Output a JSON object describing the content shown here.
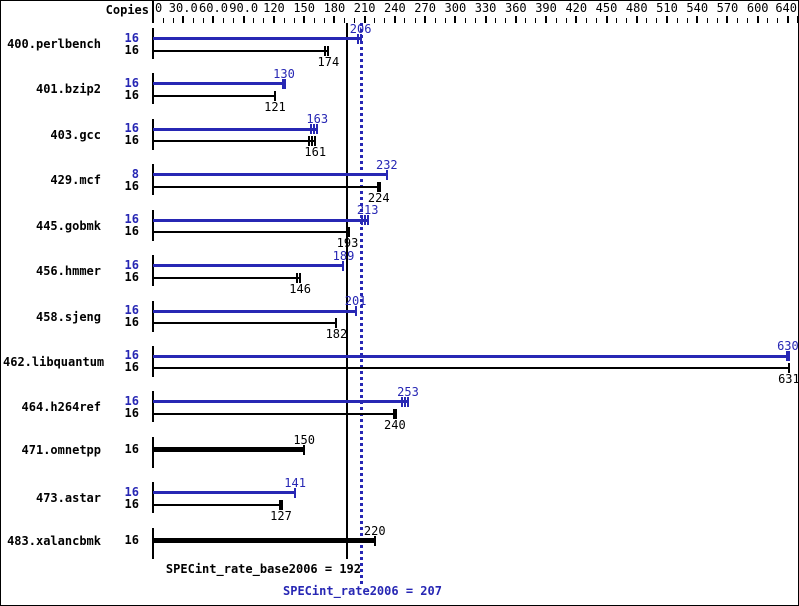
{
  "header": {
    "copies_label": "Copies"
  },
  "colors": {
    "peak_blue": "#2727b4",
    "base_black": "#000000",
    "background": "#ffffff"
  },
  "axis": {
    "max": 640,
    "minor_step": 10,
    "major_step": 30,
    "labels": [
      {
        "v": 0,
        "t": "0"
      },
      {
        "v": 30,
        "t": "30.0"
      },
      {
        "v": 60,
        "t": "60.0"
      },
      {
        "v": 90,
        "t": "90.0"
      },
      {
        "v": 120,
        "t": "120"
      },
      {
        "v": 150,
        "t": "150"
      },
      {
        "v": 180,
        "t": "180"
      },
      {
        "v": 210,
        "t": "210"
      },
      {
        "v": 240,
        "t": "240"
      },
      {
        "v": 270,
        "t": "270"
      },
      {
        "v": 300,
        "t": "300"
      },
      {
        "v": 330,
        "t": "330"
      },
      {
        "v": 360,
        "t": "360"
      },
      {
        "v": 390,
        "t": "390"
      },
      {
        "v": 420,
        "t": "420"
      },
      {
        "v": 450,
        "t": "450"
      },
      {
        "v": 480,
        "t": "480"
      },
      {
        "v": 510,
        "t": "510"
      },
      {
        "v": 540,
        "t": "540"
      },
      {
        "v": 570,
        "t": "570"
      },
      {
        "v": 600,
        "t": "600"
      },
      {
        "v": 640,
        "t": "640"
      }
    ]
  },
  "chart_data": {
    "type": "bar",
    "orientation": "horizontal",
    "xlim": [
      0,
      640
    ],
    "grid": false,
    "series_legend": [
      {
        "key": "peak",
        "label": "SPECint_rate2006",
        "color": "#2727b4"
      },
      {
        "key": "base",
        "label": "SPECint_rate_base2006",
        "color": "#000000"
      }
    ],
    "benchmarks": [
      {
        "name": "400.perlbench",
        "rows": [
          {
            "series": "peak",
            "copies": "16",
            "value": 206,
            "ticks": 2,
            "tick_w": 2
          },
          {
            "series": "base",
            "copies": "16",
            "value": 174,
            "ticks": 2,
            "tick_w": 2
          }
        ]
      },
      {
        "name": "401.bzip2",
        "rows": [
          {
            "series": "peak",
            "copies": "16",
            "value": 130,
            "ticks": 1,
            "tick_w": 4
          },
          {
            "series": "base",
            "copies": "16",
            "value": 121,
            "ticks": 1,
            "tick_w": 2
          }
        ]
      },
      {
        "name": "403.gcc",
        "rows": [
          {
            "series": "peak",
            "copies": "16",
            "value": 163,
            "ticks": 3,
            "tick_w": 2
          },
          {
            "series": "base",
            "copies": "16",
            "value": 161,
            "ticks": 3,
            "tick_w": 2
          }
        ]
      },
      {
        "name": "429.mcf",
        "rows": [
          {
            "series": "peak",
            "copies": "8",
            "value": 232,
            "ticks": 1,
            "tick_w": 2
          },
          {
            "series": "base",
            "copies": "16",
            "value": 224,
            "ticks": 1,
            "tick_w": 4
          }
        ]
      },
      {
        "name": "445.gobmk",
        "rows": [
          {
            "series": "peak",
            "copies": "16",
            "value": 213,
            "ticks": 3,
            "tick_w": 2
          },
          {
            "series": "base",
            "copies": "16",
            "value": 193,
            "ticks": 1,
            "tick_w": 4
          }
        ]
      },
      {
        "name": "456.hmmer",
        "rows": [
          {
            "series": "peak",
            "copies": "16",
            "value": 189,
            "ticks": 1,
            "tick_w": 2
          },
          {
            "series": "base",
            "copies": "16",
            "value": 146,
            "ticks": 2,
            "tick_w": 2
          }
        ]
      },
      {
        "name": "458.sjeng",
        "rows": [
          {
            "series": "peak",
            "copies": "16",
            "value": 201,
            "ticks": 1,
            "tick_w": 2
          },
          {
            "series": "base",
            "copies": "16",
            "value": 182,
            "ticks": 1,
            "tick_w": 2
          }
        ]
      },
      {
        "name": "462.libquantum",
        "rows": [
          {
            "series": "peak",
            "copies": "16",
            "value": 630,
            "ticks": 1,
            "tick_w": 4
          },
          {
            "series": "base",
            "copies": "16",
            "value": 631,
            "ticks": 1,
            "tick_w": 2
          }
        ]
      },
      {
        "name": "464.h264ref",
        "rows": [
          {
            "series": "peak",
            "copies": "16",
            "value": 253,
            "ticks": 3,
            "tick_w": 2
          },
          {
            "series": "base",
            "copies": "16",
            "value": 240,
            "ticks": 1,
            "tick_w": 4
          }
        ]
      },
      {
        "name": "471.omnetpp",
        "rows": [
          {
            "series": "base",
            "copies": "16",
            "value": 150,
            "ticks": 1,
            "tick_w": 2,
            "bold": true
          }
        ]
      },
      {
        "name": "473.astar",
        "rows": [
          {
            "series": "peak",
            "copies": "16",
            "value": 141,
            "ticks": 1,
            "tick_w": 2
          },
          {
            "series": "base",
            "copies": "16",
            "value": 127,
            "ticks": 1,
            "tick_w": 4
          }
        ]
      },
      {
        "name": "483.xalancbmk",
        "rows": [
          {
            "series": "base",
            "copies": "16",
            "value": 220,
            "ticks": 1,
            "tick_w": 2,
            "bold": true
          }
        ]
      }
    ],
    "summary": [
      {
        "name": "SPECint_rate_base2006",
        "value": 192,
        "series": "base",
        "text": "SPECint_rate_base2006 = 192"
      },
      {
        "name": "SPECint_rate2006",
        "value": 207,
        "series": "peak",
        "text": "SPECint_rate2006 = 207"
      }
    ]
  }
}
